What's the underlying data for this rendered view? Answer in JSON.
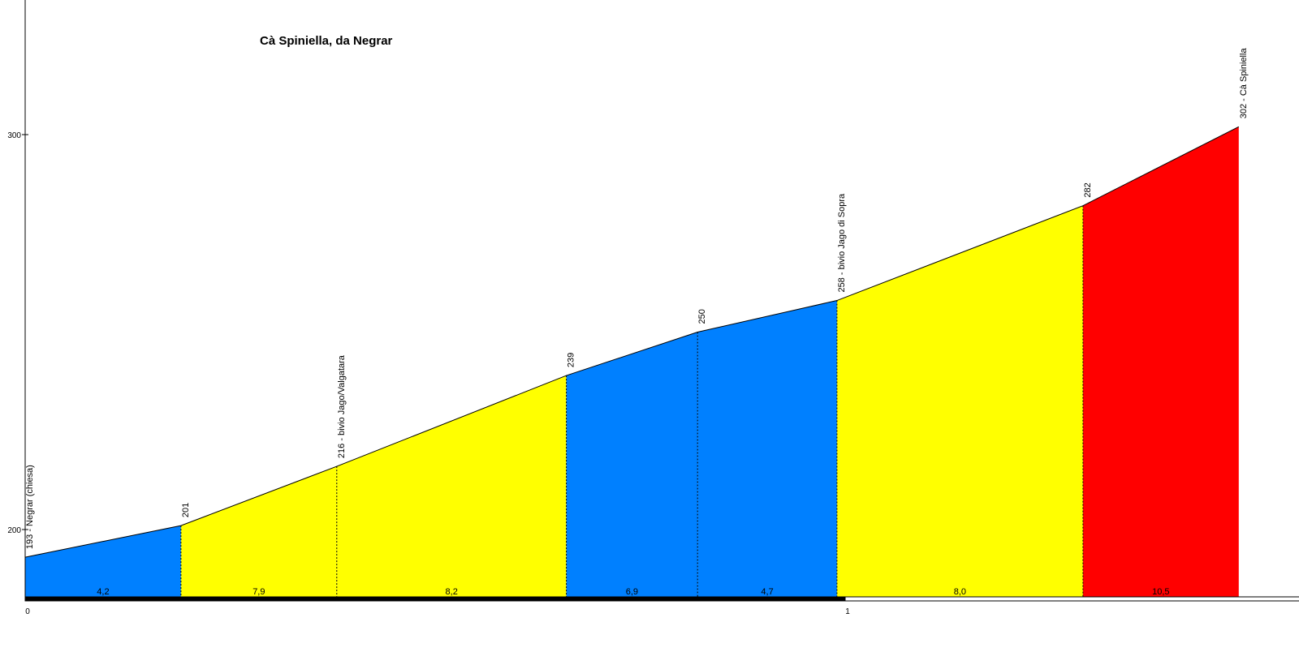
{
  "chart_data": {
    "type": "area",
    "title": "Cà Spiniella, da Negrar",
    "xlabel": "",
    "ylabel": "",
    "xlim": [
      0,
      1.55
    ],
    "ylim": [
      182,
      330
    ],
    "y_ticks": [
      "200",
      "300"
    ],
    "x_ticks": [
      "0",
      "1"
    ],
    "profile": [
      {
        "x": 0.0,
        "y": 193
      },
      {
        "x": 0.19,
        "y": 201
      },
      {
        "x": 0.38,
        "y": 216
      },
      {
        "x": 0.66,
        "y": 239
      },
      {
        "x": 0.82,
        "y": 250
      },
      {
        "x": 0.99,
        "y": 258
      },
      {
        "x": 1.29,
        "y": 282
      },
      {
        "x": 1.48,
        "y": 302
      }
    ],
    "waypoint_labels": [
      "193 - Negrar (chiesa)",
      "201",
      "216 - bivio Jago/Valgatara",
      "239",
      "250",
      "258 - bivio Jago di Sopra",
      "282",
      "302 - Cà Spiniella"
    ],
    "segments": [
      {
        "gradient": "4,2",
        "color": "#0080ff"
      },
      {
        "gradient": "7,9",
        "color": "#ffff00"
      },
      {
        "gradient": "8,2",
        "color": "#ffff00"
      },
      {
        "gradient": "6,9",
        "color": "#0080ff"
      },
      {
        "gradient": "4,7",
        "color": "#0080ff"
      },
      {
        "gradient": "8,0",
        "color": "#ffff00"
      },
      {
        "gradient": "10,5",
        "color": "#ff0000"
      }
    ]
  }
}
